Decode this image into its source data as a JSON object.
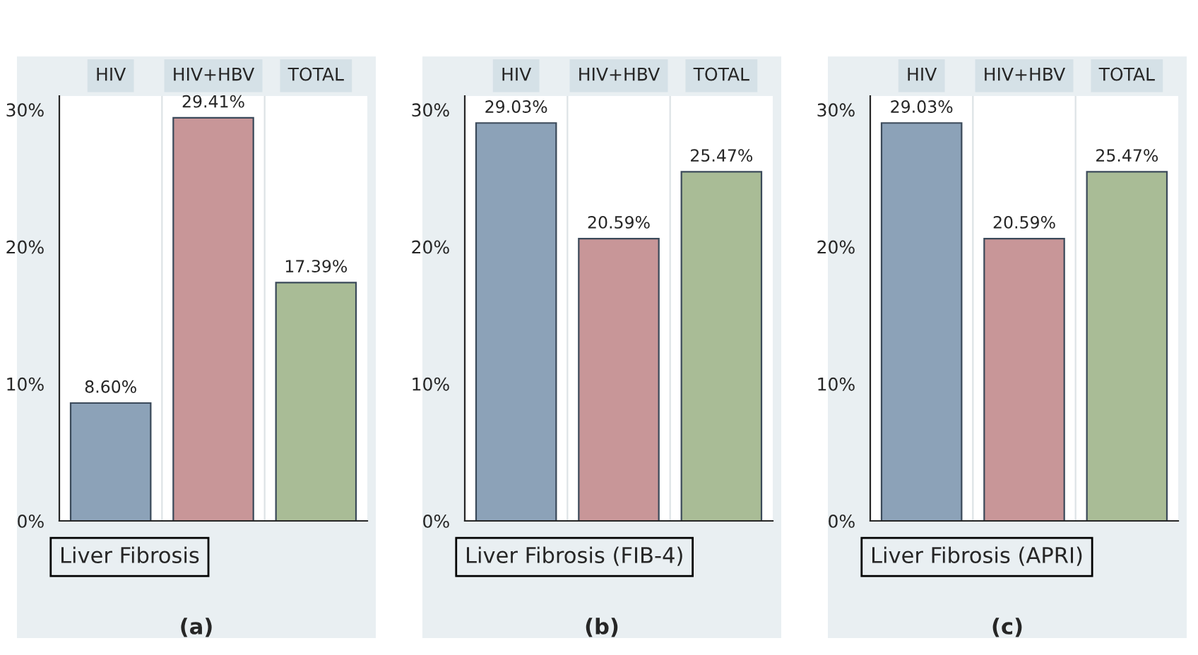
{
  "chart_data": [
    {
      "type": "bar",
      "xlabel": "Liver Fibrosis",
      "annotations": [
        "(a)"
      ],
      "categories": [
        "HIV",
        "HIV+HBV",
        "TOTAL"
      ],
      "values": [
        8.6,
        29.41,
        17.39
      ],
      "colors": [
        "#8ca2b8",
        "#c89698",
        "#a9bc96"
      ],
      "value_labels": [
        "8.60%",
        "29.41%",
        "17.39%"
      ],
      "ylim": [
        0,
        31
      ],
      "yticks": [
        {
          "value": 0,
          "label": "0%"
        },
        {
          "value": 10,
          "label": "10%"
        },
        {
          "value": 20,
          "label": "20%"
        },
        {
          "value": 30,
          "label": "30%"
        }
      ],
      "grid": false
    },
    {
      "type": "bar",
      "xlabel": "Liver Fibrosis (FIB-4)",
      "annotations": [
        "(b)"
      ],
      "categories": [
        "HIV",
        "HIV+HBV",
        "TOTAL"
      ],
      "values": [
        29.03,
        20.59,
        25.47
      ],
      "colors": [
        "#8ca2b8",
        "#c89698",
        "#a9bc96"
      ],
      "value_labels": [
        "29.03%",
        "20.59%",
        "25.47%"
      ],
      "ylim": [
        0,
        31
      ],
      "yticks": [
        {
          "value": 0,
          "label": "0%"
        },
        {
          "value": 10,
          "label": "10%"
        },
        {
          "value": 20,
          "label": "20%"
        },
        {
          "value": 30,
          "label": "30%"
        }
      ],
      "grid": false
    },
    {
      "type": "bar",
      "xlabel": "Liver Fibrosis (APRI)",
      "annotations": [
        "(c)"
      ],
      "categories": [
        "HIV",
        "HIV+HBV",
        "TOTAL"
      ],
      "values": [
        29.03,
        20.59,
        25.47
      ],
      "colors": [
        "#8ca2b8",
        "#c89698",
        "#a9bc96"
      ],
      "value_labels": [
        "29.03%",
        "20.59%",
        "25.47%"
      ],
      "ylim": [
        0,
        31
      ],
      "yticks": [
        {
          "value": 0,
          "label": "0%"
        },
        {
          "value": 10,
          "label": "10%"
        },
        {
          "value": 20,
          "label": "20%"
        },
        {
          "value": 30,
          "label": "30%"
        }
      ],
      "grid": false
    }
  ]
}
